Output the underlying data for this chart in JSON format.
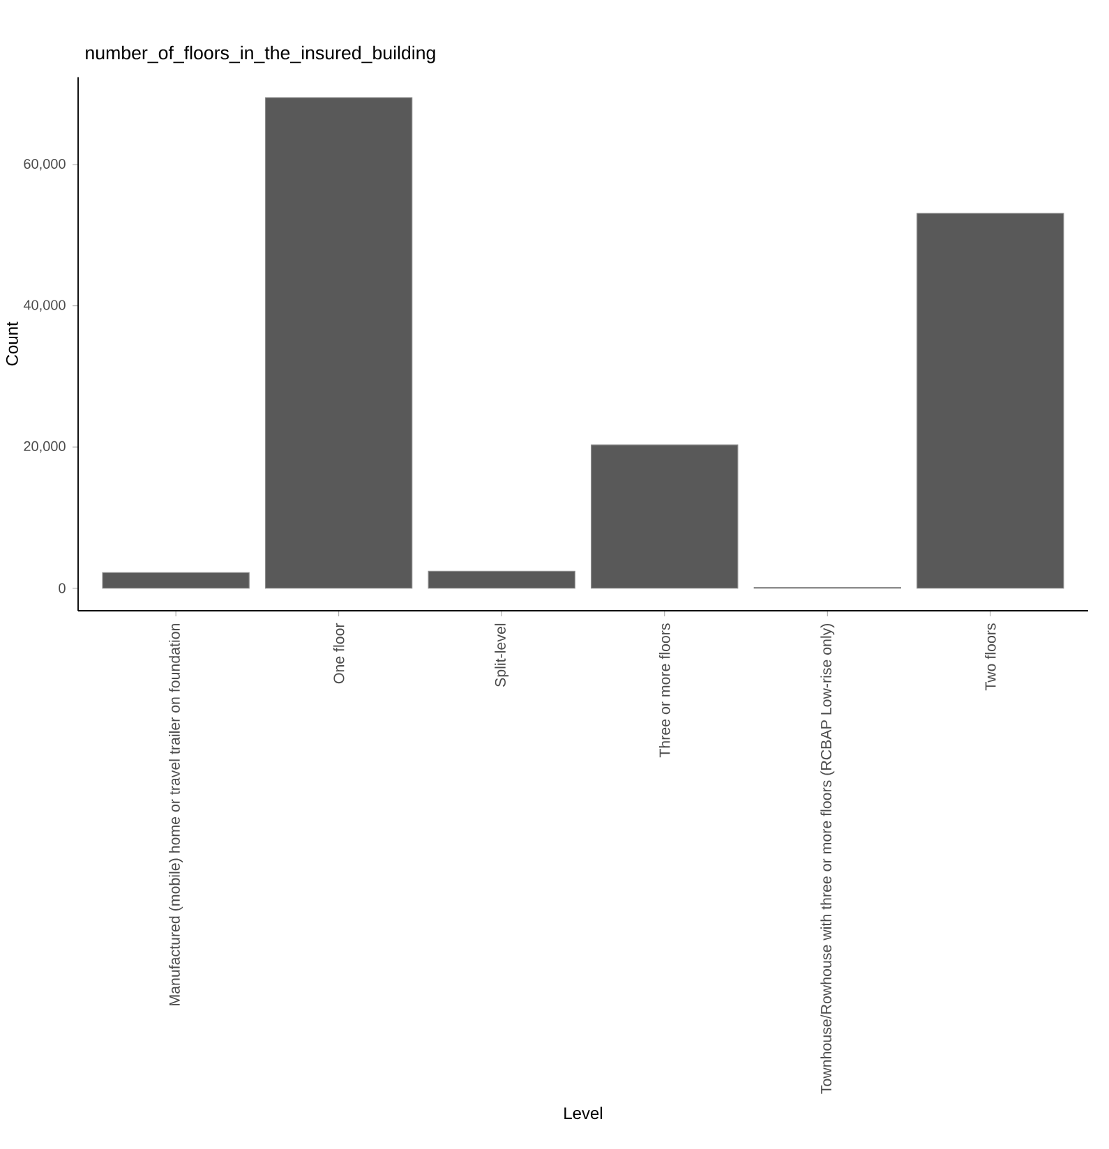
{
  "chart_data": {
    "type": "bar",
    "title": "number_of_floors_in_the_insured_building",
    "xlabel": "Level",
    "ylabel": "Count",
    "categories": [
      "Manufactured (mobile) home or travel trailer on foundation",
      "One floor",
      "Split-level",
      "Three or more floors",
      "Townhouse/Rowhouse with three or more floors (RCBAP Low-rise only)",
      "Two floors"
    ],
    "values": [
      2200,
      69500,
      2400,
      20300,
      100,
      53100
    ],
    "color": "#595959",
    "ylim": [
      -3200,
      72400
    ],
    "yticks": [
      0,
      {
        "value": 20000,
        "label": "20,000"
      },
      {
        "value": 40000,
        "label": "40,000"
      },
      {
        "value": 60000,
        "label": "60,000"
      }
    ]
  }
}
